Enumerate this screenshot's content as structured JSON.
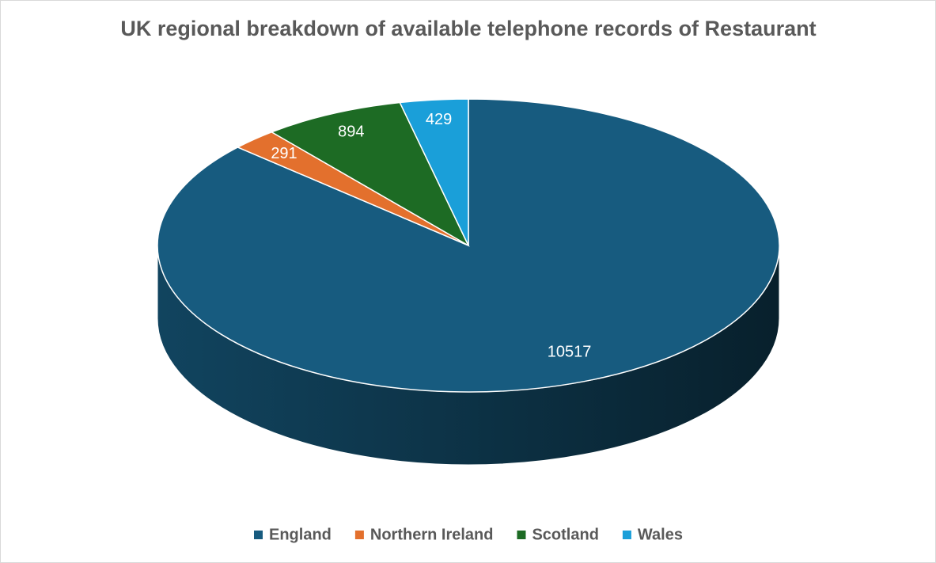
{
  "chart_data": {
    "type": "pie3d",
    "title": "UK regional breakdown of available telephone records of Restaurant",
    "categories": [
      "England",
      "Northern Ireland",
      "Scotland",
      "Wales"
    ],
    "values": [
      10517,
      291,
      894,
      429
    ],
    "colors": [
      "#175b7f",
      "#e3702d",
      "#1d6b24",
      "#1a9fd9"
    ],
    "legend": "bottom"
  }
}
